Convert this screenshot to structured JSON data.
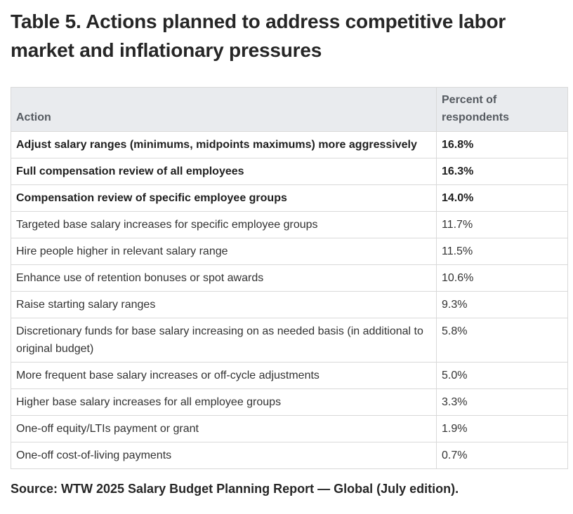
{
  "title": "Table 5. Actions planned to address competitive labor market and inflationary pressures",
  "table": {
    "headers": {
      "action": "Action",
      "percent": "Percent of respondents"
    },
    "rows": [
      {
        "action": "Adjust salary ranges (minimums, midpoints maximums) more aggressively",
        "percent": "16.8%",
        "bold": true
      },
      {
        "action": "Full compensation review of all employees",
        "percent": "16.3%",
        "bold": true
      },
      {
        "action": "Compensation review of specific employee groups",
        "percent": "14.0%",
        "bold": true
      },
      {
        "action": "Targeted base salary increases for specific employee groups",
        "percent": "11.7%",
        "bold": false
      },
      {
        "action": "Hire people higher in relevant salary range",
        "percent": "11.5%",
        "bold": false
      },
      {
        "action": "Enhance use of retention bonuses or spot awards",
        "percent": "10.6%",
        "bold": false
      },
      {
        "action": "Raise starting salary ranges",
        "percent": "9.3%",
        "bold": false
      },
      {
        "action": "Discretionary funds for base salary increasing on as needed basis (in additional to original budget)",
        "percent": "5.8%",
        "bold": false
      },
      {
        "action": "More frequent base salary increases or off-cycle adjustments",
        "percent": "5.0%",
        "bold": false
      },
      {
        "action": "Higher base salary increases for all employee groups",
        "percent": "3.3%",
        "bold": false
      },
      {
        "action": "One-off equity/LTIs payment or grant",
        "percent": "1.9%",
        "bold": false
      },
      {
        "action": "One-off cost-of-living payments",
        "percent": "0.7%",
        "bold": false
      }
    ]
  },
  "source": "Source: WTW 2025 Salary Budget Planning Report — Global (July edition)."
}
